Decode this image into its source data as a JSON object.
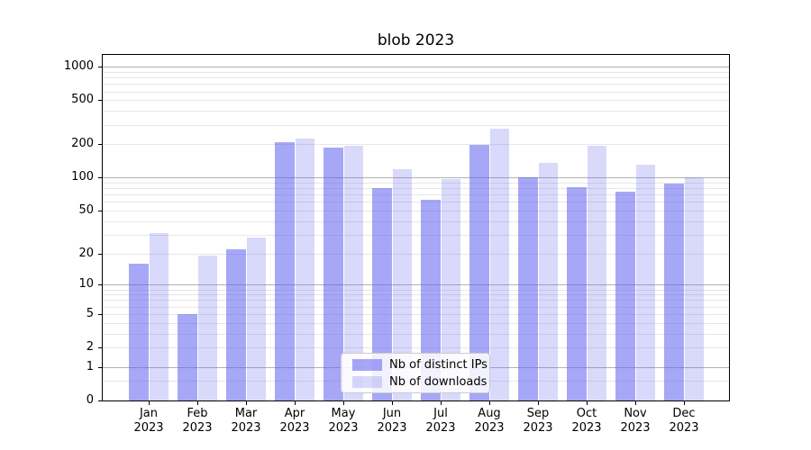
{
  "chart_data": {
    "type": "bar",
    "title": "blob 2023",
    "categories": [
      "Jan 2023",
      "Feb 2023",
      "Mar 2023",
      "Apr 2023",
      "May 2023",
      "Jun 2023",
      "Jul 2023",
      "Aug 2023",
      "Sep 2023",
      "Oct 2023",
      "Nov 2023",
      "Dec 2023"
    ],
    "series": [
      {
        "name": "Nb of distinct IPs",
        "color": "rgba(95,95,240,0.55)",
        "values": [
          16,
          5,
          22,
          210,
          188,
          80,
          63,
          198,
          100,
          82,
          74,
          88
        ]
      },
      {
        "name": "Nb of downloads",
        "color": "rgba(95,95,240,0.24)",
        "values": [
          31,
          19,
          28,
          225,
          196,
          120,
          97,
          280,
          135,
          195,
          130,
          100
        ]
      }
    ],
    "xlabel": "",
    "ylabel": "",
    "yscale": "symlog",
    "yticks": [
      0,
      1,
      2,
      5,
      10,
      20,
      50,
      100,
      200,
      500,
      1000
    ],
    "ylim": [
      0,
      1300
    ],
    "grid": true,
    "legend_position": "lower center"
  },
  "colors": {
    "bar_base": "#5f5ff0",
    "bar_ips_composited": "#a7a7f7",
    "bar_downloads_composited": "#d9d9fa",
    "grid_major": "#b2b2b2",
    "grid_minor": "#e7e7e7",
    "axis_spine": "#000000",
    "legend_border": "#cccccc"
  }
}
